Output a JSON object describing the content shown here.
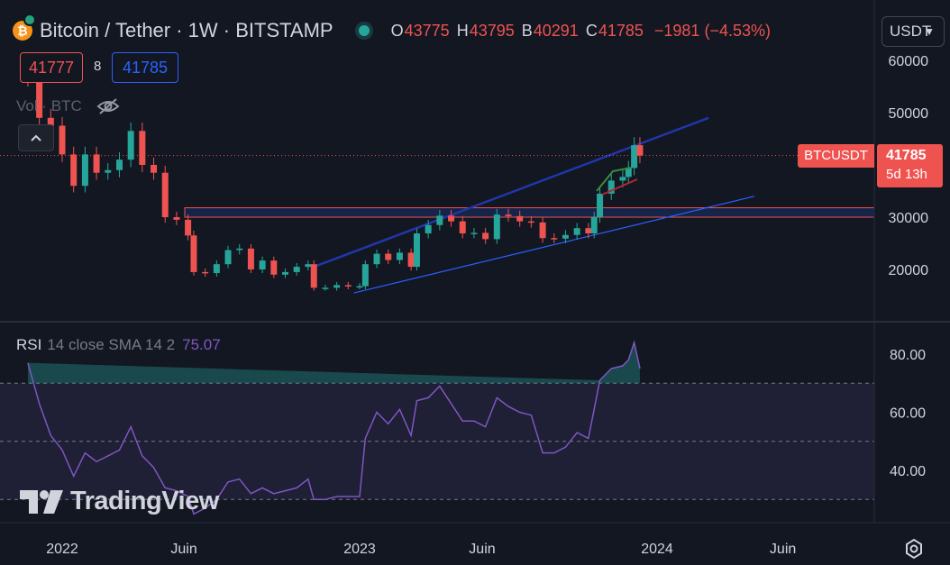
{
  "header": {
    "symbol": "Bitcoin / Tether · 1W · BITSTAMP",
    "open_label": "O",
    "open_value": "43775",
    "high_label": "H",
    "high_value": "43795",
    "low_label": "B",
    "low_value": "40291",
    "close_label": "C",
    "close_value": "41785",
    "change": "−1981 (−4.53%)",
    "coin_glyph": "₿",
    "currency_selector": "USDT"
  },
  "trade": {
    "sell_price": "41777",
    "spread": "8",
    "buy_price": "41785"
  },
  "volume_label": "Vol · BTC",
  "rsi_legend": {
    "name": "RSI",
    "params": "14 close SMA 14 2",
    "value": "75.07"
  },
  "last_price_tag": {
    "symbol": "BTCUSDT",
    "price": "41785",
    "countdown": "5d 13h"
  },
  "watermark": "TradingView",
  "colors": {
    "background": "#131722",
    "up": "#26a69a",
    "down": "#ef5350",
    "channel": "#2962ff",
    "rsi": "#7e57c2"
  },
  "chart_data": [
    {
      "type": "candlestick",
      "title": "Bitcoin / Tether · 1W · BITSTAMP",
      "x_tick_labels": [
        "2022",
        "Juin",
        "2023",
        "Juin",
        "2024",
        "Juin"
      ],
      "x_ticks": [
        "2022-01-03",
        "2022-06-01",
        "2023-01-02",
        "2023-06-01",
        "2024-01-01",
        "2024-06-03"
      ],
      "y_tick_labels": [
        "20000",
        "30000",
        "40000",
        "50000",
        "60000"
      ],
      "ylim": [
        13000,
        66000
      ],
      "grid": false,
      "approx_weekly_close": [
        [
          "2021-11-22",
          57000
        ],
        [
          "2021-12-06",
          49000
        ],
        [
          "2021-12-20",
          47500
        ],
        [
          "2022-01-03",
          42000
        ],
        [
          "2022-01-17",
          36000
        ],
        [
          "2022-01-31",
          42000
        ],
        [
          "2022-02-14",
          38500
        ],
        [
          "2022-02-28",
          39000
        ],
        [
          "2022-03-14",
          41000
        ],
        [
          "2022-03-28",
          46500
        ],
        [
          "2022-04-11",
          40000
        ],
        [
          "2022-04-25",
          38500
        ],
        [
          "2022-05-09",
          30000
        ],
        [
          "2022-05-23",
          29500
        ],
        [
          "2022-06-06",
          26500
        ],
        [
          "2022-06-13",
          19500
        ],
        [
          "2022-06-27",
          19300
        ],
        [
          "2022-07-11",
          21000
        ],
        [
          "2022-07-25",
          23700
        ],
        [
          "2022-08-08",
          24000
        ],
        [
          "2022-08-22",
          20000
        ],
        [
          "2022-09-05",
          21700
        ],
        [
          "2022-09-19",
          19000
        ],
        [
          "2022-10-03",
          19500
        ],
        [
          "2022-10-17",
          20500
        ],
        [
          "2022-10-31",
          21000
        ],
        [
          "2022-11-07",
          16500
        ],
        [
          "2022-11-21",
          16500
        ],
        [
          "2022-12-05",
          17000
        ],
        [
          "2022-12-19",
          16800
        ],
        [
          "2023-01-02",
          16800
        ],
        [
          "2023-01-09",
          21000
        ],
        [
          "2023-01-23",
          23000
        ],
        [
          "2023-02-06",
          21800
        ],
        [
          "2023-02-20",
          23200
        ],
        [
          "2023-03-06",
          20500
        ],
        [
          "2023-03-13",
          26900
        ],
        [
          "2023-03-27",
          28500
        ],
        [
          "2023-04-10",
          30300
        ],
        [
          "2023-04-24",
          29200
        ],
        [
          "2023-05-08",
          26900
        ],
        [
          "2023-05-22",
          27000
        ],
        [
          "2023-06-05",
          25800
        ],
        [
          "2023-06-19",
          30500
        ],
        [
          "2023-07-03",
          30200
        ],
        [
          "2023-07-17",
          29200
        ],
        [
          "2023-07-31",
          29000
        ],
        [
          "2023-08-14",
          26000
        ],
        [
          "2023-08-28",
          25900
        ],
        [
          "2023-09-11",
          26600
        ],
        [
          "2023-09-25",
          27900
        ],
        [
          "2023-10-09",
          26900
        ],
        [
          "2023-10-16",
          30000
        ],
        [
          "2023-10-23",
          34500
        ],
        [
          "2023-11-06",
          37000
        ],
        [
          "2023-11-20",
          37700
        ],
        [
          "2023-11-27",
          39400
        ],
        [
          "2023-12-04",
          43775
        ],
        [
          "2023-12-11",
          41785
        ]
      ],
      "last_price": 41785,
      "range_box": [
        30000,
        31800
      ],
      "channel_upper": [
        [
          "2022-11-07",
          20500
        ],
        [
          "2024-03-04",
          49000
        ]
      ],
      "channel_lower": [
        [
          "2022-12-26",
          15500
        ],
        [
          "2024-04-29",
          34000
        ]
      ],
      "series": [
        {
          "name": "Vol · BTC",
          "values": []
        }
      ]
    },
    {
      "type": "line",
      "title": "RSI 14 close SMA 14 2",
      "y_tick_labels": [
        "40.00",
        "60.00",
        "80.00"
      ],
      "levels": [
        70,
        50,
        30
      ],
      "ylim": [
        28,
        86
      ],
      "last_value": 75.07,
      "approx_values": [
        [
          "2021-11-22",
          77
        ],
        [
          "2021-12-06",
          63
        ],
        [
          "2021-12-20",
          52
        ],
        [
          "2022-01-03",
          47
        ],
        [
          "2022-01-17",
          38
        ],
        [
          "2022-01-31",
          46
        ],
        [
          "2022-02-14",
          43
        ],
        [
          "2022-02-28",
          45
        ],
        [
          "2022-03-14",
          47
        ],
        [
          "2022-03-28",
          55
        ],
        [
          "2022-04-11",
          45
        ],
        [
          "2022-04-25",
          41
        ],
        [
          "2022-05-09",
          34
        ],
        [
          "2022-05-23",
          33
        ],
        [
          "2022-06-06",
          31
        ],
        [
          "2022-06-13",
          25
        ],
        [
          "2022-06-27",
          27
        ],
        [
          "2022-07-11",
          30
        ],
        [
          "2022-07-25",
          36
        ],
        [
          "2022-08-08",
          37
        ],
        [
          "2022-08-22",
          32
        ],
        [
          "2022-09-05",
          34
        ],
        [
          "2022-09-19",
          32
        ],
        [
          "2022-10-03",
          33
        ],
        [
          "2022-10-17",
          34
        ],
        [
          "2022-10-31",
          37
        ],
        [
          "2022-11-07",
          30
        ],
        [
          "2022-11-21",
          30
        ],
        [
          "2022-12-05",
          31
        ],
        [
          "2022-12-19",
          31
        ],
        [
          "2023-01-02",
          31
        ],
        [
          "2023-01-09",
          51
        ],
        [
          "2023-01-23",
          60
        ],
        [
          "2023-02-06",
          56
        ],
        [
          "2023-02-20",
          61
        ],
        [
          "2023-03-06",
          52
        ],
        [
          "2023-03-13",
          64
        ],
        [
          "2023-03-27",
          65
        ],
        [
          "2023-04-10",
          69
        ],
        [
          "2023-04-24",
          63
        ],
        [
          "2023-05-08",
          57
        ],
        [
          "2023-05-22",
          57
        ],
        [
          "2023-06-05",
          55
        ],
        [
          "2023-06-19",
          65
        ],
        [
          "2023-07-03",
          62
        ],
        [
          "2023-07-17",
          60
        ],
        [
          "2023-07-31",
          59
        ],
        [
          "2023-08-14",
          46
        ],
        [
          "2023-08-28",
          46
        ],
        [
          "2023-09-11",
          48
        ],
        [
          "2023-09-25",
          53
        ],
        [
          "2023-10-09",
          51
        ],
        [
          "2023-10-16",
          61
        ],
        [
          "2023-10-23",
          71
        ],
        [
          "2023-11-06",
          75
        ],
        [
          "2023-11-20",
          76
        ],
        [
          "2023-11-27",
          78
        ],
        [
          "2023-12-04",
          84
        ],
        [
          "2023-12-11",
          75.07
        ]
      ]
    }
  ]
}
